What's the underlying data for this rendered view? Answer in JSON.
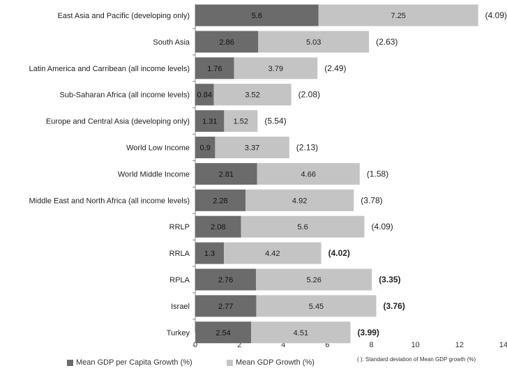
{
  "chart_data": {
    "type": "bar",
    "stacked": true,
    "orientation": "horizontal",
    "categories": [
      "East Asia and Pacific (developing only)",
      "South Asia",
      "Latin America and Carribean (all income levels)",
      "Sub-Saharan Africa (all income levels)",
      "Europe and Central Asia (developing only)",
      "World Low Income",
      "World Middle Income",
      "Middle East and North Africa (all income levels)",
      "RRLP",
      "RRLA",
      "RPLA",
      "Israel",
      "Turkey"
    ],
    "series": [
      {
        "name": "Mean GDP per Capita Growth (%)",
        "color": "#6b6b6b",
        "values": [
          5.6,
          2.86,
          1.76,
          0.84,
          1.31,
          0.9,
          2.81,
          2.28,
          2.08,
          1.3,
          2.76,
          2.77,
          2.54
        ]
      },
      {
        "name": "Mean GDP Growth (%)",
        "color": "#c4c4c4",
        "values": [
          7.25,
          5.03,
          3.79,
          3.52,
          1.52,
          3.37,
          4.66,
          4.92,
          5.6,
          4.42,
          5.26,
          5.45,
          4.51
        ]
      }
    ],
    "std_dev_labels": [
      "(4.09)",
      "(2.63)",
      "(2.49)",
      "(2.08)",
      "(5.54)",
      "(2.13)",
      "(1.58)",
      "(3.78)",
      "(4.09)",
      "(4.02)",
      "(3.35)",
      "(3.76)",
      "(3.99)"
    ],
    "std_dev_bold": [
      false,
      false,
      false,
      false,
      false,
      false,
      false,
      false,
      false,
      true,
      true,
      true,
      true
    ],
    "xlim": [
      0,
      14
    ],
    "xticks": [
      0,
      2,
      4,
      6,
      8,
      10,
      12,
      14
    ],
    "grid": false,
    "legend_position": "bottom",
    "note": "( ): Standard deviation of Mean GDP growth (%)"
  }
}
